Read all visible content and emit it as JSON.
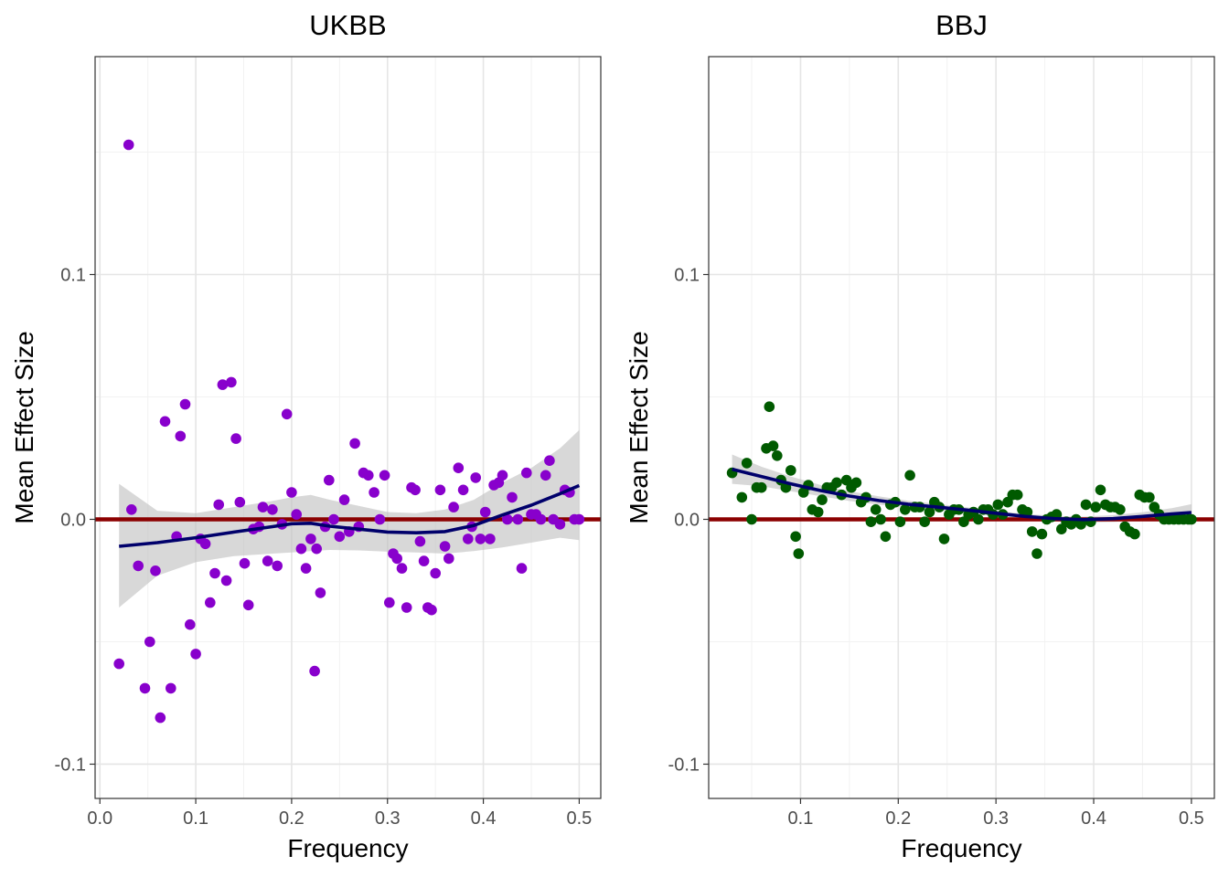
{
  "chart_data": [
    {
      "type": "scatter",
      "title": "UKBB",
      "xlabel": "Frequency",
      "ylabel": "Mean Effect Size",
      "xlim": [
        -0.005,
        0.5225
      ],
      "ylim": [
        -0.114,
        0.189
      ],
      "xticks": [
        0.0,
        0.1,
        0.2,
        0.3,
        0.4,
        0.5
      ],
      "xtick_labels": [
        "0.0",
        "0.1",
        "0.2",
        "0.3",
        "0.4",
        "0.5"
      ],
      "yticks": [
        -0.1,
        0.0,
        0.1
      ],
      "ytick_labels": [
        "-0.1",
        "0.0",
        "0.1"
      ],
      "grid": true,
      "point_color": "#8800cc",
      "smooth_color": "#00006b",
      "band_color": "#bebebe",
      "hline": {
        "y": 0,
        "color": "#8b0000"
      },
      "series": {
        "x": [
          0.02,
          0.03,
          0.033,
          0.04,
          0.047,
          0.052,
          0.058,
          0.063,
          0.068,
          0.074,
          0.08,
          0.084,
          0.089,
          0.094,
          0.1,
          0.105,
          0.11,
          0.115,
          0.12,
          0.124,
          0.128,
          0.132,
          0.137,
          0.142,
          0.146,
          0.151,
          0.155,
          0.16,
          0.166,
          0.17,
          0.175,
          0.18,
          0.185,
          0.19,
          0.195,
          0.2,
          0.205,
          0.21,
          0.215,
          0.22,
          0.224,
          0.226,
          0.23,
          0.235,
          0.239,
          0.244,
          0.25,
          0.255,
          0.26,
          0.266,
          0.27,
          0.275,
          0.28,
          0.286,
          0.292,
          0.297,
          0.302,
          0.306,
          0.31,
          0.315,
          0.32,
          0.325,
          0.329,
          0.334,
          0.338,
          0.342,
          0.346,
          0.35,
          0.355,
          0.36,
          0.364,
          0.369,
          0.374,
          0.379,
          0.384,
          0.388,
          0.392,
          0.397,
          0.402,
          0.407,
          0.411,
          0.416,
          0.42,
          0.425,
          0.43,
          0.436,
          0.44,
          0.445,
          0.45,
          0.455,
          0.46,
          0.465,
          0.469,
          0.473,
          0.48,
          0.485,
          0.49,
          0.495,
          0.5
        ],
        "y": [
          -0.059,
          0.153,
          0.004,
          -0.019,
          -0.069,
          -0.05,
          -0.021,
          -0.081,
          0.04,
          -0.069,
          -0.007,
          0.034,
          0.047,
          -0.043,
          -0.055,
          -0.008,
          -0.01,
          -0.034,
          -0.022,
          0.006,
          0.055,
          -0.025,
          0.056,
          0.033,
          0.007,
          -0.018,
          -0.035,
          -0.004,
          -0.003,
          0.005,
          -0.017,
          0.004,
          -0.019,
          -0.002,
          0.043,
          0.011,
          0.002,
          -0.012,
          -0.02,
          -0.008,
          -0.062,
          -0.012,
          -0.03,
          -0.003,
          0.016,
          0.0,
          -0.007,
          0.008,
          -0.005,
          0.031,
          -0.003,
          0.019,
          0.018,
          0.011,
          0.0,
          0.018,
          -0.034,
          -0.014,
          -0.016,
          -0.02,
          -0.036,
          0.013,
          0.012,
          -0.009,
          -0.017,
          -0.036,
          -0.037,
          -0.022,
          0.012,
          -0.011,
          -0.016,
          0.005,
          0.021,
          0.012,
          -0.008,
          -0.003,
          0.017,
          -0.008,
          0.003,
          -0.008,
          0.014,
          0.015,
          0.018,
          0.0,
          0.009,
          0.0,
          -0.02,
          0.019,
          0.002,
          0.002,
          0.0,
          0.018,
          0.024,
          0.0,
          -0.002,
          0.012,
          0.011,
          0.0,
          0.0
        ]
      },
      "smooth": {
        "x": [
          0.02,
          0.06,
          0.1,
          0.14,
          0.18,
          0.2,
          0.22,
          0.24,
          0.27,
          0.3,
          0.33,
          0.36,
          0.39,
          0.42,
          0.45,
          0.48,
          0.5
        ],
        "y": [
          -0.011,
          -0.0095,
          -0.0075,
          -0.0052,
          -0.003,
          -0.0018,
          -0.0016,
          -0.0028,
          -0.004,
          -0.0052,
          -0.0055,
          -0.005,
          -0.0025,
          0.0018,
          0.0058,
          0.0105,
          0.0138
        ],
        "lower": [
          -0.036,
          -0.023,
          -0.0175,
          -0.015,
          -0.014,
          -0.0135,
          -0.013,
          -0.0125,
          -0.0127,
          -0.0132,
          -0.0135,
          -0.014,
          -0.013,
          -0.0115,
          -0.0095,
          -0.0075,
          -0.0085
        ],
        "upper": [
          0.0145,
          0.0035,
          0.0025,
          0.005,
          0.0075,
          0.009,
          0.01,
          0.008,
          0.0055,
          0.003,
          0.0025,
          0.004,
          0.008,
          0.015,
          0.021,
          0.029,
          0.0365
        ]
      }
    },
    {
      "type": "scatter",
      "title": "BBJ",
      "xlabel": "Frequency",
      "ylabel": "Mean Effect Size",
      "xlim": [
        0.006,
        0.5235
      ],
      "ylim": [
        -0.114,
        0.189
      ],
      "xticks": [
        0.1,
        0.2,
        0.3,
        0.4,
        0.5
      ],
      "xtick_labels": [
        "0.1",
        "0.2",
        "0.3",
        "0.4",
        "0.5"
      ],
      "yticks": [
        -0.1,
        0.0,
        0.1
      ],
      "ytick_labels": [
        "-0.1",
        "0.0",
        "0.1"
      ],
      "grid": true,
      "point_color": "#005a00",
      "smooth_color": "#00006b",
      "band_color": "#bebebe",
      "hline": {
        "y": 0,
        "color": "#8b0000"
      },
      "series": {
        "x": [
          0.03,
          0.04,
          0.045,
          0.05,
          0.055,
          0.06,
          0.065,
          0.068,
          0.072,
          0.076,
          0.08,
          0.085,
          0.09,
          0.095,
          0.098,
          0.103,
          0.108,
          0.112,
          0.118,
          0.122,
          0.127,
          0.132,
          0.137,
          0.142,
          0.147,
          0.152,
          0.157,
          0.162,
          0.167,
          0.172,
          0.177,
          0.182,
          0.187,
          0.192,
          0.197,
          0.202,
          0.207,
          0.212,
          0.217,
          0.222,
          0.227,
          0.232,
          0.237,
          0.242,
          0.247,
          0.252,
          0.257,
          0.262,
          0.267,
          0.272,
          0.277,
          0.282,
          0.287,
          0.292,
          0.297,
          0.302,
          0.307,
          0.312,
          0.317,
          0.322,
          0.327,
          0.332,
          0.337,
          0.342,
          0.347,
          0.352,
          0.357,
          0.362,
          0.367,
          0.372,
          0.377,
          0.382,
          0.387,
          0.392,
          0.397,
          0.402,
          0.407,
          0.412,
          0.417,
          0.422,
          0.427,
          0.432,
          0.437,
          0.442,
          0.447,
          0.452,
          0.457,
          0.462,
          0.467,
          0.472,
          0.477,
          0.482,
          0.487,
          0.492,
          0.497,
          0.5
        ],
        "y": [
          0.019,
          0.009,
          0.023,
          0.0,
          0.013,
          0.013,
          0.029,
          0.046,
          0.03,
          0.026,
          0.016,
          0.013,
          0.02,
          -0.007,
          -0.014,
          0.011,
          0.014,
          0.004,
          0.003,
          0.008,
          0.013,
          0.013,
          0.015,
          0.01,
          0.016,
          0.013,
          0.015,
          0.007,
          0.009,
          -0.001,
          0.004,
          0.0,
          -0.007,
          0.006,
          0.007,
          -0.001,
          0.004,
          0.018,
          0.005,
          0.005,
          -0.001,
          0.003,
          0.007,
          0.005,
          -0.008,
          0.002,
          0.004,
          0.004,
          -0.001,
          0.002,
          0.003,
          0.0,
          0.004,
          0.004,
          0.002,
          0.006,
          0.002,
          0.007,
          0.01,
          0.01,
          0.004,
          0.003,
          -0.005,
          -0.014,
          -0.006,
          0.0,
          0.001,
          0.002,
          -0.004,
          -0.001,
          -0.002,
          0.0,
          -0.002,
          0.006,
          -0.001,
          0.005,
          0.012,
          0.006,
          0.005,
          0.005,
          0.004,
          -0.003,
          -0.005,
          -0.006,
          0.01,
          0.009,
          0.009,
          0.005,
          0.002,
          0.0,
          0.0,
          0.0,
          0.0,
          0.0,
          0.0,
          0.0
        ]
      },
      "smooth": {
        "x": [
          0.03,
          0.06,
          0.09,
          0.12,
          0.15,
          0.18,
          0.21,
          0.24,
          0.27,
          0.3,
          0.33,
          0.36,
          0.39,
          0.42,
          0.45,
          0.48,
          0.5
        ],
        "y": [
          0.0205,
          0.0175,
          0.0145,
          0.0118,
          0.0095,
          0.0077,
          0.0062,
          0.005,
          0.0038,
          0.0025,
          0.0012,
          0.0003,
          -0.0001,
          0.0003,
          0.0012,
          0.0022,
          0.0028
        ],
        "lower": [
          0.0145,
          0.0135,
          0.0115,
          0.0095,
          0.0075,
          0.006,
          0.0048,
          0.0037,
          0.0027,
          0.0015,
          0.0002,
          -0.0008,
          -0.0013,
          -0.0011,
          -0.0005,
          -0.0002,
          -0.0006
        ],
        "upper": [
          0.0265,
          0.0215,
          0.0175,
          0.0141,
          0.0115,
          0.0094,
          0.0076,
          0.0063,
          0.0049,
          0.0035,
          0.0022,
          0.0014,
          0.0011,
          0.0017,
          0.0029,
          0.0046,
          0.0062
        ]
      }
    }
  ]
}
